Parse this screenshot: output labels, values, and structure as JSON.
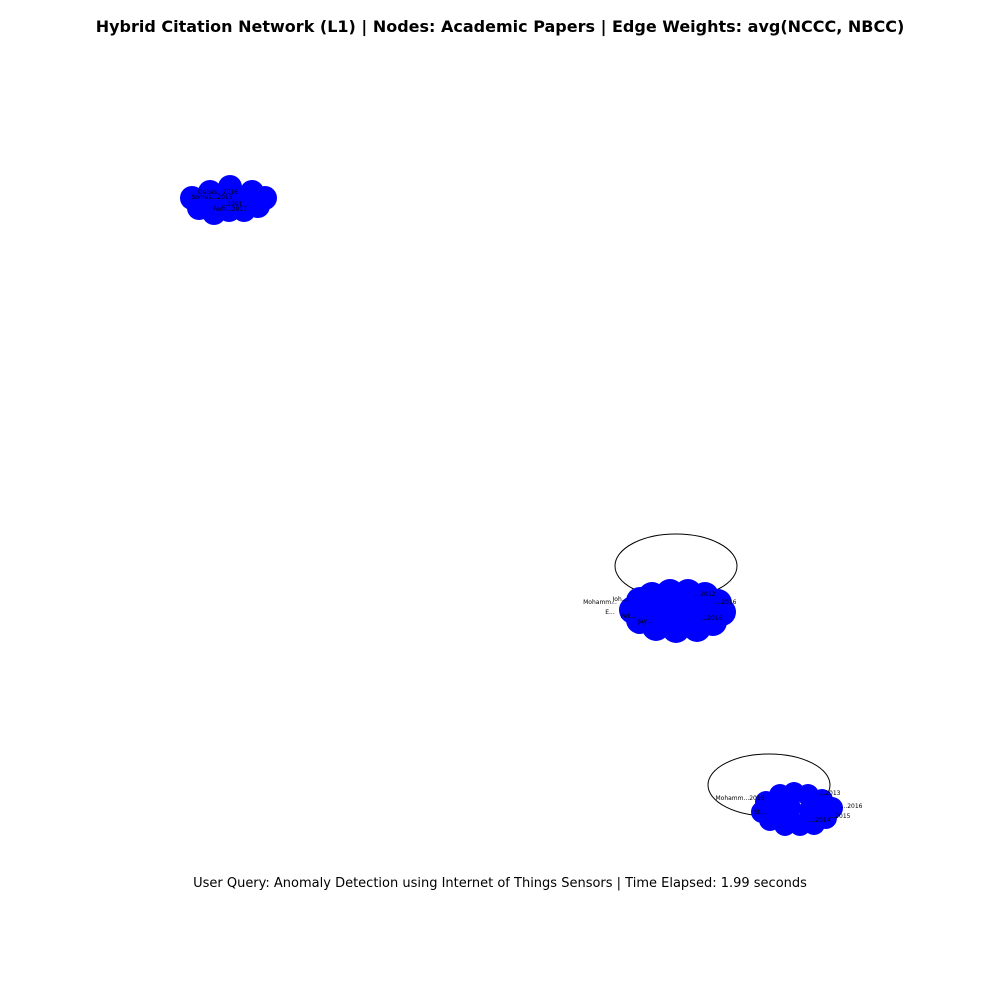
{
  "figure": {
    "title": "Hybrid Citation Network (L1) | Nodes: Academic Papers | Edge Weights: avg(NCCC, NBCC)",
    "caption": "User Query: Anomaly Detection using Internet of Things Sensors | Time Elapsed: 1.99 seconds"
  },
  "colors": {
    "node_fill": "#0000ff",
    "edge_stroke": "#000000",
    "label_text": "#000000",
    "background": "#ffffff"
  },
  "clusters": [
    {
      "id": "cluster-1",
      "has_self_loop": false,
      "visible_labels": [
        "Debas...2016",
        "Somas...2015",
        "...1991",
        "Ferh...2017"
      ]
    },
    {
      "id": "cluster-2",
      "has_self_loop": true,
      "visible_labels": [
        "...2012",
        "Mohamm...",
        "Joh...",
        "...2016",
        "E...",
        "Pet...",
        "Jay...",
        "...2016"
      ]
    },
    {
      "id": "cluster-3",
      "has_self_loop": true,
      "visible_labels": [
        "...2013",
        "Mohamm...2016",
        "...2016",
        "...2015",
        "St...",
        "...2014"
      ]
    }
  ]
}
